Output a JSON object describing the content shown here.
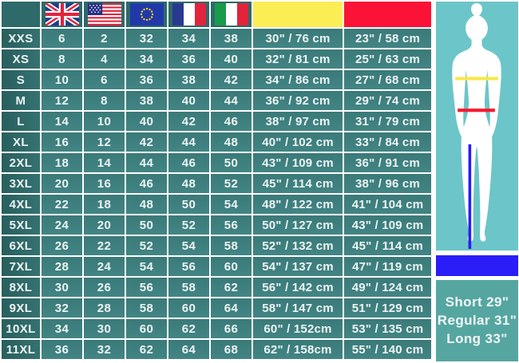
{
  "table": {
    "columns": [
      "size",
      "uk",
      "us",
      "eu",
      "fr",
      "it",
      "bust",
      "waist"
    ],
    "header_flag_icons": [
      "uk-flag",
      "us-flag",
      "eu-flag",
      "france-flag",
      "italy-flag"
    ],
    "bust_header_color": "#fbee55",
    "waist_header_color": "#fb1237",
    "rows": [
      {
        "size": "XXS",
        "uk": "6",
        "us": "2",
        "eu": "32",
        "fr": "34",
        "it": "38",
        "bust": "30\" / 76 cm",
        "waist": "23\" / 58 cm"
      },
      {
        "size": "XS",
        "uk": "8",
        "us": "4",
        "eu": "34",
        "fr": "36",
        "it": "40",
        "bust": "32\" / 81 cm",
        "waist": "25\" / 63 cm"
      },
      {
        "size": "S",
        "uk": "10",
        "us": "6",
        "eu": "36",
        "fr": "38",
        "it": "42",
        "bust": "34\" / 86 cm",
        "waist": "27\" / 68 cm"
      },
      {
        "size": "M",
        "uk": "12",
        "us": "8",
        "eu": "38",
        "fr": "40",
        "it": "44",
        "bust": "36\" / 92 cm",
        "waist": "29\" / 74 cm"
      },
      {
        "size": "L",
        "uk": "14",
        "us": "10",
        "eu": "40",
        "fr": "42",
        "it": "46",
        "bust": "38\" / 97 cm",
        "waist": "31\" / 79 cm"
      },
      {
        "size": "XL",
        "uk": "16",
        "us": "12",
        "eu": "42",
        "fr": "44",
        "it": "48",
        "bust": "40\" / 102 cm",
        "waist": "33\" / 84 cm"
      },
      {
        "size": "2XL",
        "uk": "18",
        "us": "14",
        "eu": "44",
        "fr": "46",
        "it": "50",
        "bust": "43\" / 109 cm",
        "waist": "36\" / 91 cm"
      },
      {
        "size": "3XL",
        "uk": "20",
        "us": "16",
        "eu": "46",
        "fr": "48",
        "it": "52",
        "bust": "45\" / 114 cm",
        "waist": "38\" / 96 cm"
      },
      {
        "size": "4XL",
        "uk": "22",
        "us": "18",
        "eu": "48",
        "fr": "50",
        "it": "54",
        "bust": "48\" / 122 cm",
        "waist": "41\" / 104 cm"
      },
      {
        "size": "5XL",
        "uk": "24",
        "us": "20",
        "eu": "50",
        "fr": "52",
        "it": "56",
        "bust": "50\" / 127 cm",
        "waist": "43\" / 109 cm"
      },
      {
        "size": "6XL",
        "uk": "26",
        "us": "22",
        "eu": "52",
        "fr": "54",
        "it": "58",
        "bust": "52\" / 132 cm",
        "waist": "45\" / 114 cm"
      },
      {
        "size": "7XL",
        "uk": "28",
        "us": "24",
        "eu": "54",
        "fr": "56",
        "it": "60",
        "bust": "54\" / 137 cm",
        "waist": "47\" / 119 cm"
      },
      {
        "size": "8XL",
        "uk": "30",
        "us": "26",
        "eu": "56",
        "fr": "58",
        "it": "62",
        "bust": "56\" / 142 cm",
        "waist": "49\" / 124 cm"
      },
      {
        "size": "9XL",
        "uk": "32",
        "us": "28",
        "eu": "58",
        "fr": "60",
        "it": "64",
        "bust": "58\" / 147 cm",
        "waist": "51\" / 129 cm"
      },
      {
        "size": "10XL",
        "uk": "34",
        "us": "30",
        "eu": "60",
        "fr": "62",
        "it": "66",
        "bust": "60\" / 152cm",
        "waist": "53\" / 135 cm"
      },
      {
        "size": "11XL",
        "uk": "36",
        "us": "32",
        "eu": "62",
        "fr": "64",
        "it": "68",
        "bust": "62\" / 158cm",
        "waist": "55\" / 140 cm"
      }
    ]
  },
  "side_panel": {
    "lengths": [
      "Short 29\"",
      "Regular 31\"",
      "Long 33\""
    ],
    "bust_line_icon": "bust-measure-line",
    "waist_line_icon": "waist-measure-line",
    "inseam_line_icon": "inseam-measure-line"
  },
  "colors": {
    "header_teal": "#2d6a69",
    "cell_teal": "#3e7f7f",
    "label_teal": "#2f6b6a",
    "bust_yellow": "#fbee55",
    "waist_red": "#fb1237",
    "figure_panel_cyan": "#6cc5c8",
    "inseam_blue": "#2a1df7",
    "length_panel_teal": "#55a6a1",
    "bust_line_yellow": "#f8e84c",
    "waist_line_red": "#f8192f",
    "text_white": "#eef5f5"
  }
}
